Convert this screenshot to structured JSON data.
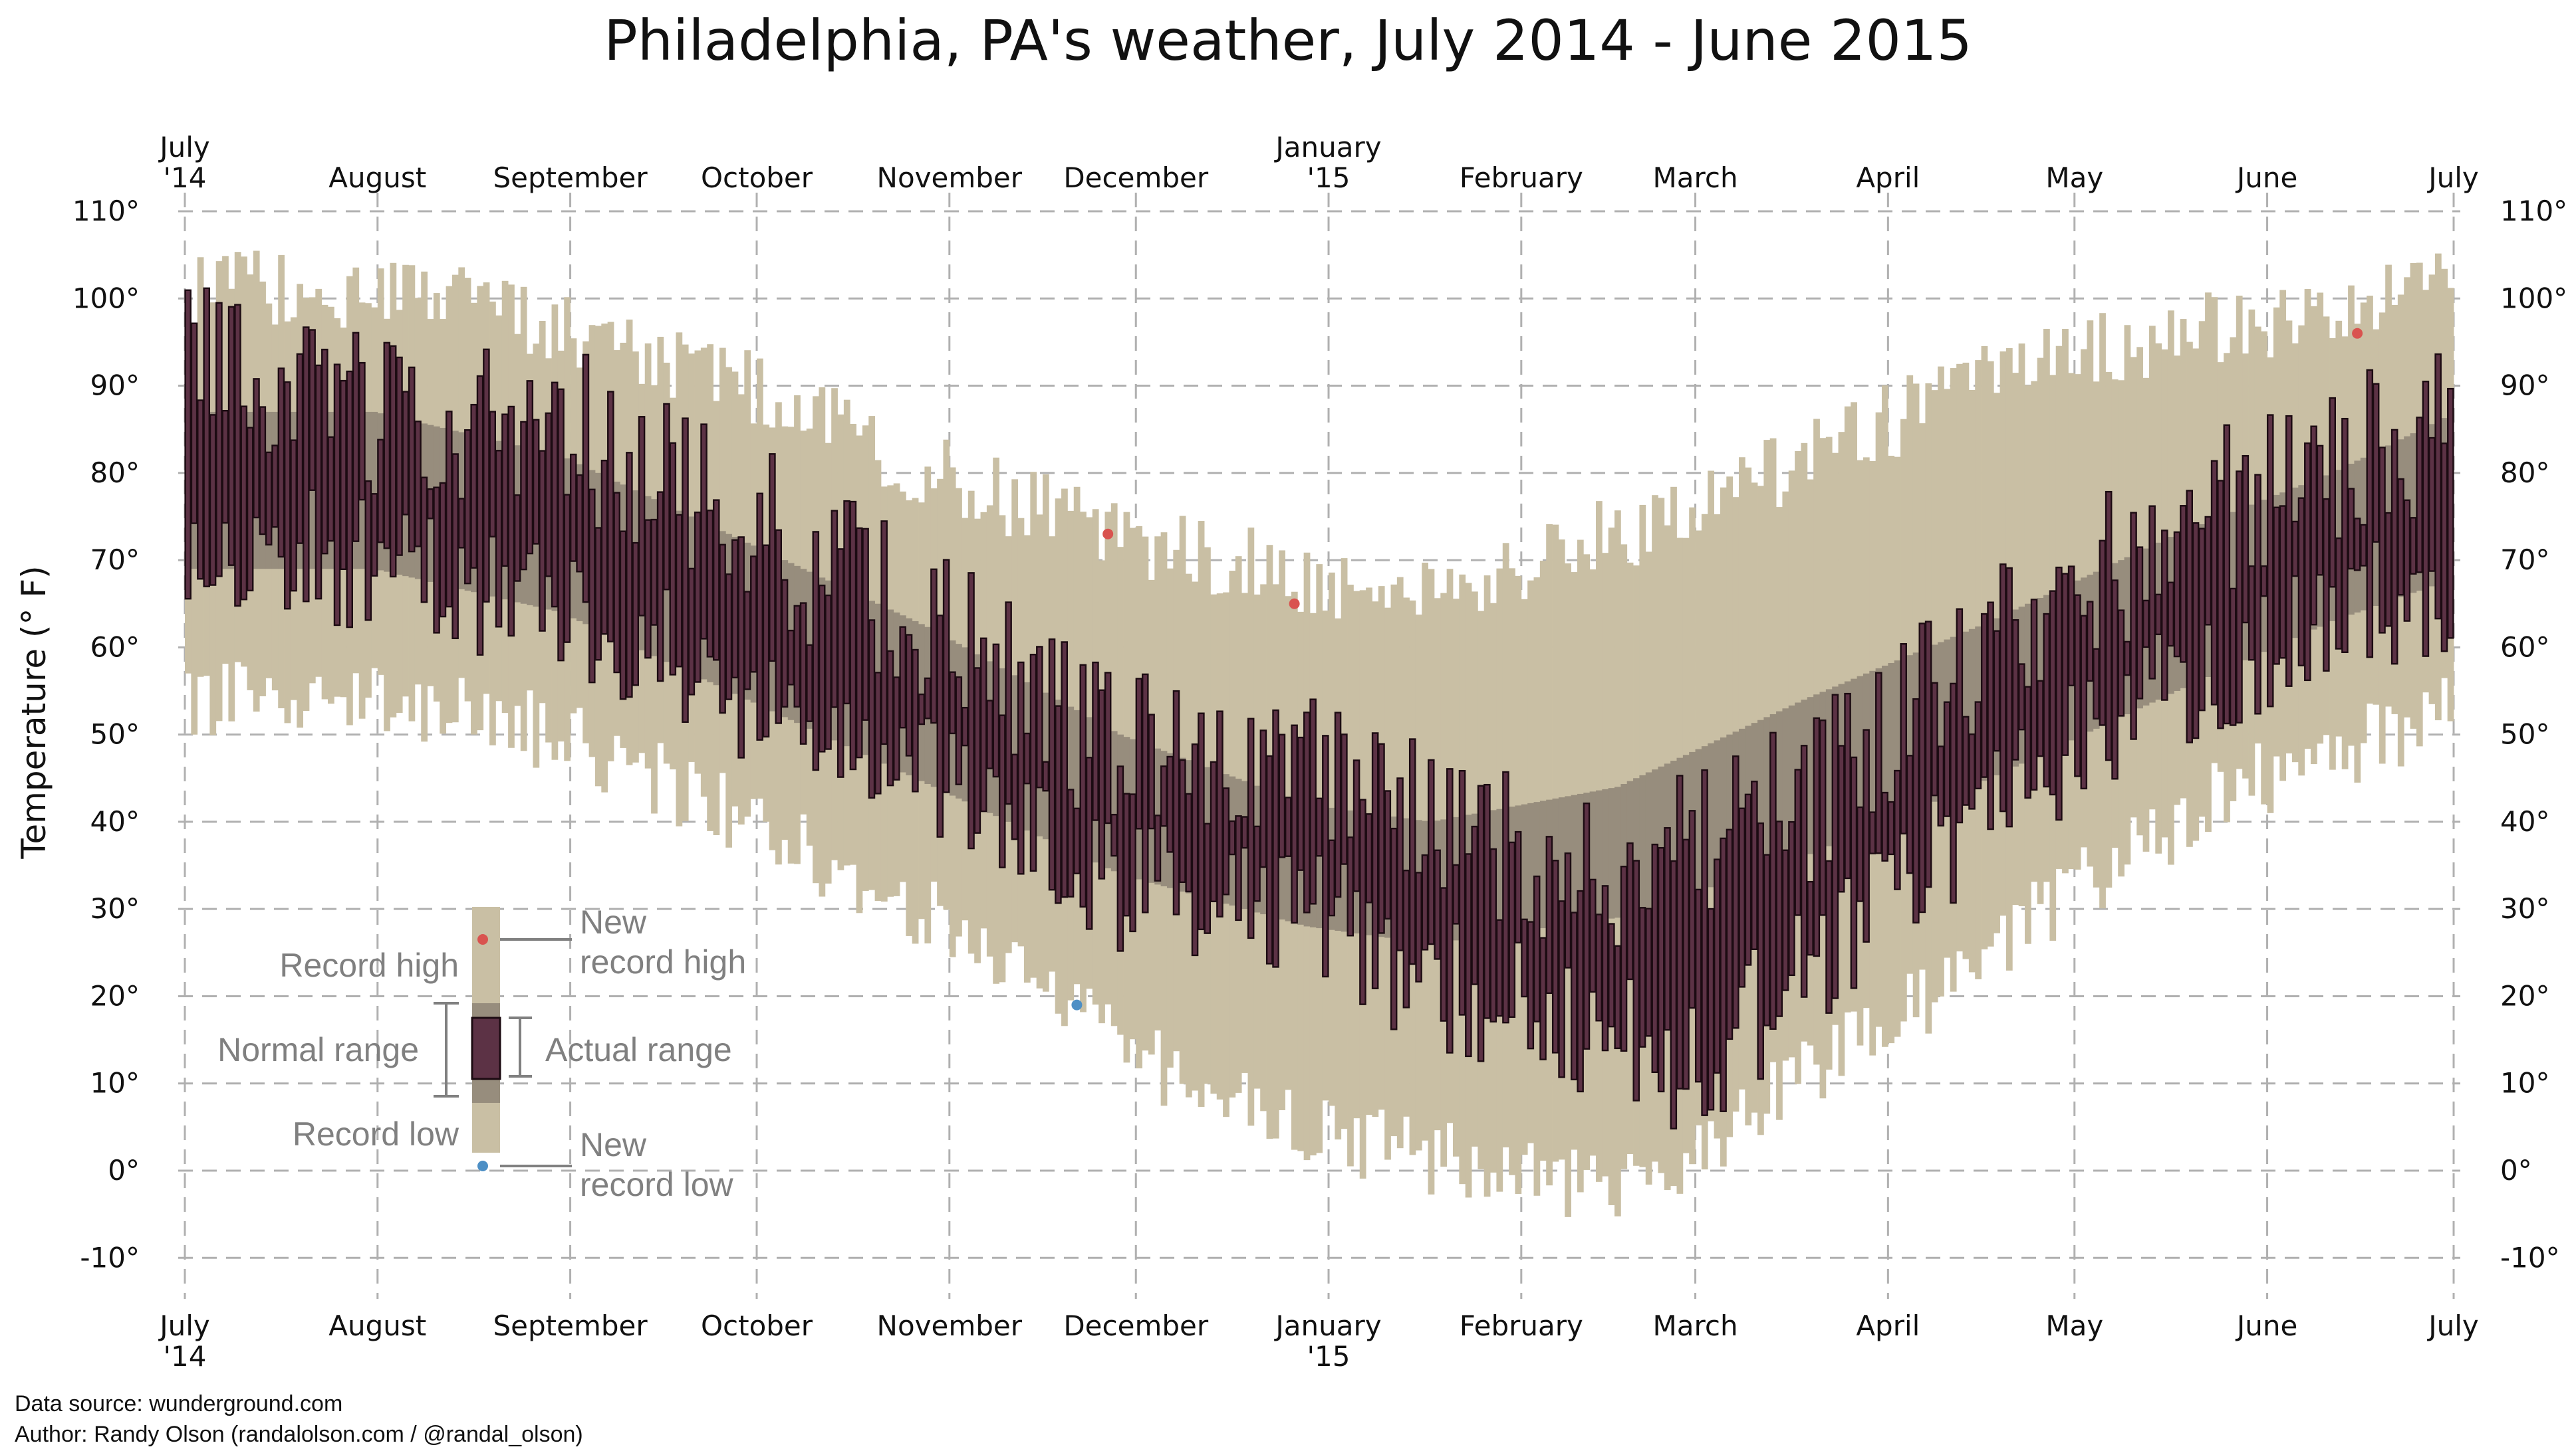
{
  "chart_data": {
    "type": "bar",
    "title": "Philadelphia, PA's weather, July 2014 - June 2015",
    "ylabel": "Temperature (° F)",
    "ylim": [
      -13,
      116
    ],
    "y_ticks": [
      110,
      100,
      90,
      80,
      70,
      60,
      50,
      40,
      30,
      20,
      10,
      0,
      -10
    ],
    "y_tick_labels": [
      "110°",
      "100°",
      "90°",
      "80°",
      "70°",
      "60°",
      "50°",
      "40°",
      "30°",
      "20°",
      "10°",
      "0°",
      "-10°"
    ],
    "month_labels": [
      {
        "line1": "July",
        "line2": "'14",
        "day": 0
      },
      {
        "line1": "August",
        "line2": "",
        "day": 31
      },
      {
        "line1": "September",
        "line2": "",
        "day": 62
      },
      {
        "line1": "October",
        "line2": "",
        "day": 92
      },
      {
        "line1": "November",
        "line2": "",
        "day": 123
      },
      {
        "line1": "December",
        "line2": "",
        "day": 153
      },
      {
        "line1": "January",
        "line2": "'15",
        "day": 184
      },
      {
        "line1": "February",
        "line2": "",
        "day": 215
      },
      {
        "line1": "March",
        "line2": "",
        "day": 243
      },
      {
        "line1": "April",
        "line2": "",
        "day": 274
      },
      {
        "line1": "May",
        "line2": "",
        "day": 304
      },
      {
        "line1": "June",
        "line2": "",
        "day": 335
      },
      {
        "line1": "July",
        "line2": "",
        "day": 365
      }
    ],
    "days_in_year": 365,
    "record_high_anchors": [
      [
        0,
        101
      ],
      [
        30,
        101
      ],
      [
        60,
        97
      ],
      [
        90,
        90
      ],
      [
        120,
        80
      ],
      [
        150,
        73
      ],
      [
        180,
        68
      ],
      [
        200,
        67
      ],
      [
        240,
        75
      ],
      [
        270,
        85
      ],
      [
        300,
        93
      ],
      [
        330,
        97
      ],
      [
        365,
        101
      ]
    ],
    "record_low_anchors": [
      [
        0,
        54
      ],
      [
        30,
        55
      ],
      [
        60,
        50
      ],
      [
        90,
        40
      ],
      [
        120,
        29
      ],
      [
        150,
        14
      ],
      [
        180,
        5
      ],
      [
        210,
        0
      ],
      [
        230,
        -3
      ],
      [
        255,
        8
      ],
      [
        280,
        20
      ],
      [
        305,
        33
      ],
      [
        330,
        44
      ],
      [
        365,
        53
      ]
    ],
    "normal_high_anchors": [
      [
        0,
        87
      ],
      [
        30,
        87
      ],
      [
        60,
        82
      ],
      [
        90,
        72
      ],
      [
        120,
        62
      ],
      [
        150,
        50
      ],
      [
        180,
        42
      ],
      [
        200,
        40
      ],
      [
        230,
        44
      ],
      [
        260,
        54
      ],
      [
        290,
        63
      ],
      [
        320,
        73
      ],
      [
        345,
        80
      ],
      [
        365,
        87
      ]
    ],
    "normal_low_anchors": [
      [
        0,
        69
      ],
      [
        30,
        69
      ],
      [
        60,
        64
      ],
      [
        90,
        54
      ],
      [
        120,
        44
      ],
      [
        150,
        34
      ],
      [
        180,
        28
      ],
      [
        200,
        26
      ],
      [
        230,
        29
      ],
      [
        260,
        36
      ],
      [
        290,
        45
      ],
      [
        320,
        55
      ],
      [
        345,
        63
      ],
      [
        365,
        68
      ]
    ],
    "actual_high_anchors": [
      [
        0,
        92
      ],
      [
        30,
        87
      ],
      [
        60,
        86
      ],
      [
        90,
        74
      ],
      [
        120,
        62
      ],
      [
        150,
        48
      ],
      [
        180,
        46
      ],
      [
        200,
        39
      ],
      [
        220,
        34
      ],
      [
        240,
        36
      ],
      [
        260,
        42
      ],
      [
        280,
        56
      ],
      [
        300,
        66
      ],
      [
        330,
        77
      ],
      [
        365,
        86
      ]
    ],
    "actual_low_anchors": [
      [
        0,
        73
      ],
      [
        30,
        69
      ],
      [
        60,
        65
      ],
      [
        90,
        54
      ],
      [
        120,
        44
      ],
      [
        150,
        32
      ],
      [
        180,
        31
      ],
      [
        200,
        21
      ],
      [
        220,
        18
      ],
      [
        240,
        12
      ],
      [
        250,
        16
      ],
      [
        270,
        30
      ],
      [
        290,
        42
      ],
      [
        310,
        52
      ],
      [
        340,
        62
      ],
      [
        365,
        68
      ]
    ],
    "new_record_highs": [
      [
        148,
        73
      ],
      [
        178,
        65
      ],
      [
        349,
        96
      ]
    ],
    "new_record_lows": [
      [
        143,
        19
      ]
    ],
    "legend": {
      "record_high": "Record high",
      "new_record_high": "New record high",
      "normal_range": "Normal range",
      "actual_range": "Actual range",
      "record_low": "Record low",
      "new_record_low": "New record low"
    }
  },
  "credits": {
    "source": "Data source: wunderground.com",
    "author": "Author: Randy Olson (randalolson.com / @randal_olson)"
  },
  "colors": {
    "record_band": "#c9bfa4",
    "normal_band": "#978d7d",
    "actual_bar": "#5c3245",
    "actual_edge": "#1c0b12",
    "new_high_dot": "#d9534f",
    "new_low_dot": "#4d8fc5"
  }
}
